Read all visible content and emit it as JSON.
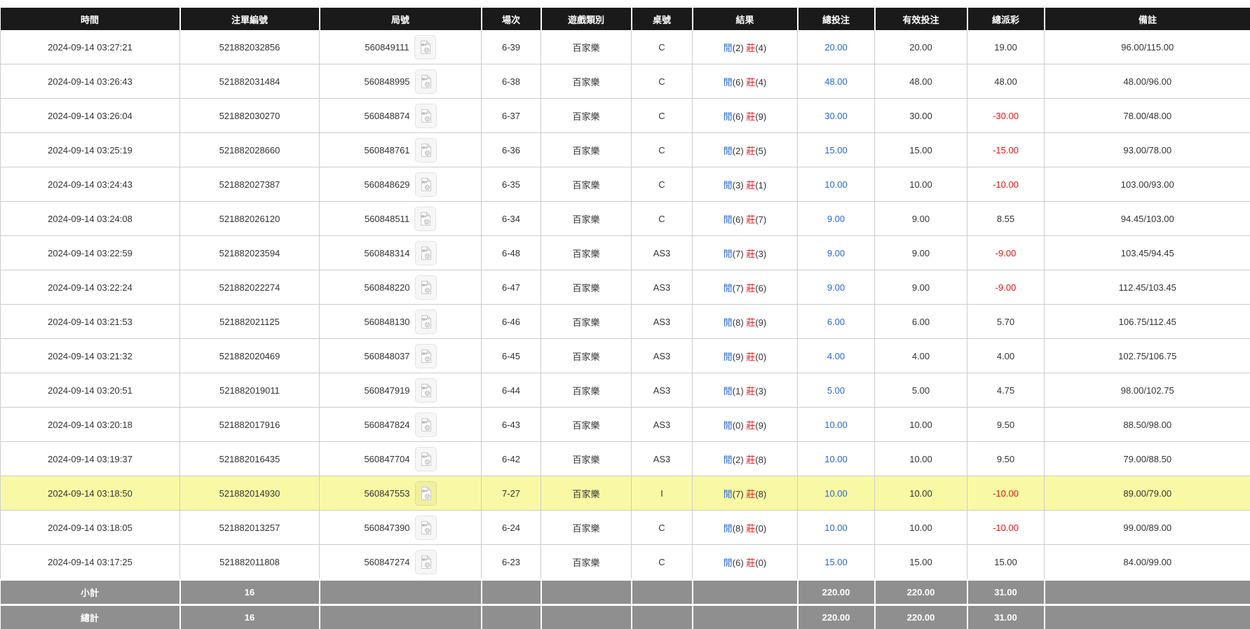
{
  "table": {
    "columns": [
      {
        "key": "time",
        "label": "時間"
      },
      {
        "key": "bet_id",
        "label": "注單編號"
      },
      {
        "key": "round_id",
        "label": "局號"
      },
      {
        "key": "session",
        "label": "場次"
      },
      {
        "key": "game",
        "label": "遊戲類別"
      },
      {
        "key": "table_no",
        "label": "桌號"
      },
      {
        "key": "result",
        "label": "結果"
      },
      {
        "key": "total_bet",
        "label": "總投注"
      },
      {
        "key": "valid_bet",
        "label": "有效投注"
      },
      {
        "key": "payout",
        "label": "總派彩"
      },
      {
        "key": "remark",
        "label": "備註"
      }
    ],
    "result_labels": {
      "player_char": "閒",
      "banker_char": "莊"
    },
    "icons": {
      "round_video": "video-replay-icon"
    },
    "rows": [
      {
        "time": "2024-09-14 03:27:21",
        "bet_id": "521882032856",
        "round_id": "560849111",
        "session": "6-39",
        "game": "百家樂",
        "table_no": "C",
        "player": "(2)",
        "banker": "(4)",
        "total_bet": "20.00",
        "valid_bet": "20.00",
        "payout": "19.00",
        "remark": "96.00/115.00",
        "highlight": false
      },
      {
        "time": "2024-09-14 03:26:43",
        "bet_id": "521882031484",
        "round_id": "560848995",
        "session": "6-38",
        "game": "百家樂",
        "table_no": "C",
        "player": "(6)",
        "banker": "(4)",
        "total_bet": "48.00",
        "valid_bet": "48.00",
        "payout": "48.00",
        "remark": "48.00/96.00",
        "highlight": false
      },
      {
        "time": "2024-09-14 03:26:04",
        "bet_id": "521882030270",
        "round_id": "560848874",
        "session": "6-37",
        "game": "百家樂",
        "table_no": "C",
        "player": "(6)",
        "banker": "(9)",
        "total_bet": "30.00",
        "valid_bet": "30.00",
        "payout": "-30.00",
        "remark": "78.00/48.00",
        "highlight": false
      },
      {
        "time": "2024-09-14 03:25:19",
        "bet_id": "521882028660",
        "round_id": "560848761",
        "session": "6-36",
        "game": "百家樂",
        "table_no": "C",
        "player": "(2)",
        "banker": "(5)",
        "total_bet": "15.00",
        "valid_bet": "15.00",
        "payout": "-15.00",
        "remark": "93.00/78.00",
        "highlight": false
      },
      {
        "time": "2024-09-14 03:24:43",
        "bet_id": "521882027387",
        "round_id": "560848629",
        "session": "6-35",
        "game": "百家樂",
        "table_no": "C",
        "player": "(3)",
        "banker": "(1)",
        "total_bet": "10.00",
        "valid_bet": "10.00",
        "payout": "-10.00",
        "remark": "103.00/93.00",
        "highlight": false
      },
      {
        "time": "2024-09-14 03:24:08",
        "bet_id": "521882026120",
        "round_id": "560848511",
        "session": "6-34",
        "game": "百家樂",
        "table_no": "C",
        "player": "(6)",
        "banker": "(7)",
        "total_bet": "9.00",
        "valid_bet": "9.00",
        "payout": "8.55",
        "remark": "94.45/103.00",
        "highlight": false
      },
      {
        "time": "2024-09-14 03:22:59",
        "bet_id": "521882023594",
        "round_id": "560848314",
        "session": "6-48",
        "game": "百家樂",
        "table_no": "AS3",
        "player": "(7)",
        "banker": "(3)",
        "total_bet": "9.00",
        "valid_bet": "9.00",
        "payout": "-9.00",
        "remark": "103.45/94.45",
        "highlight": false
      },
      {
        "time": "2024-09-14 03:22:24",
        "bet_id": "521882022274",
        "round_id": "560848220",
        "session": "6-47",
        "game": "百家樂",
        "table_no": "AS3",
        "player": "(7)",
        "banker": "(6)",
        "total_bet": "9.00",
        "valid_bet": "9.00",
        "payout": "-9.00",
        "remark": "112.45/103.45",
        "highlight": false
      },
      {
        "time": "2024-09-14 03:21:53",
        "bet_id": "521882021125",
        "round_id": "560848130",
        "session": "6-46",
        "game": "百家樂",
        "table_no": "AS3",
        "player": "(8)",
        "banker": "(9)",
        "total_bet": "6.00",
        "valid_bet": "6.00",
        "payout": "5.70",
        "remark": "106.75/112.45",
        "highlight": false
      },
      {
        "time": "2024-09-14 03:21:32",
        "bet_id": "521882020469",
        "round_id": "560848037",
        "session": "6-45",
        "game": "百家樂",
        "table_no": "AS3",
        "player": "(9)",
        "banker": "(0)",
        "total_bet": "4.00",
        "valid_bet": "4.00",
        "payout": "4.00",
        "remark": "102.75/106.75",
        "highlight": false
      },
      {
        "time": "2024-09-14 03:20:51",
        "bet_id": "521882019011",
        "round_id": "560847919",
        "session": "6-44",
        "game": "百家樂",
        "table_no": "AS3",
        "player": "(1)",
        "banker": "(3)",
        "total_bet": "5.00",
        "valid_bet": "5.00",
        "payout": "4.75",
        "remark": "98.00/102.75",
        "highlight": false
      },
      {
        "time": "2024-09-14 03:20:18",
        "bet_id": "521882017916",
        "round_id": "560847824",
        "session": "6-43",
        "game": "百家樂",
        "table_no": "AS3",
        "player": "(0)",
        "banker": "(9)",
        "total_bet": "10.00",
        "valid_bet": "10.00",
        "payout": "9.50",
        "remark": "88.50/98.00",
        "highlight": false
      },
      {
        "time": "2024-09-14 03:19:37",
        "bet_id": "521882016435",
        "round_id": "560847704",
        "session": "6-42",
        "game": "百家樂",
        "table_no": "AS3",
        "player": "(2)",
        "banker": "(8)",
        "total_bet": "10.00",
        "valid_bet": "10.00",
        "payout": "9.50",
        "remark": "79.00/88.50",
        "highlight": false
      },
      {
        "time": "2024-09-14 03:18:50",
        "bet_id": "521882014930",
        "round_id": "560847553",
        "session": "7-27",
        "game": "百家樂",
        "table_no": "I",
        "player": "(7)",
        "banker": "(8)",
        "total_bet": "10.00",
        "valid_bet": "10.00",
        "payout": "-10.00",
        "remark": "89.00/79.00",
        "highlight": true
      },
      {
        "time": "2024-09-14 03:18:05",
        "bet_id": "521882013257",
        "round_id": "560847390",
        "session": "6-24",
        "game": "百家樂",
        "table_no": "C",
        "player": "(8)",
        "banker": "(0)",
        "total_bet": "10.00",
        "valid_bet": "10.00",
        "payout": "-10.00",
        "remark": "99.00/89.00",
        "highlight": false
      },
      {
        "time": "2024-09-14 03:17:25",
        "bet_id": "521882011808",
        "round_id": "560847274",
        "session": "6-23",
        "game": "百家樂",
        "table_no": "C",
        "player": "(6)",
        "banker": "(0)",
        "total_bet": "15.00",
        "valid_bet": "15.00",
        "payout": "15.00",
        "remark": "84.00/99.00",
        "highlight": false
      }
    ],
    "footer": [
      {
        "label": "小計",
        "count": "16",
        "total_bet": "220.00",
        "valid_bet": "220.00",
        "payout": "31.00"
      },
      {
        "label": "總計",
        "count": "16",
        "total_bet": "220.00",
        "valid_bet": "220.00",
        "payout": "31.00"
      }
    ]
  },
  "colors": {
    "header_bg": "#1a1a1a",
    "footer_bg": "#8f8f8f",
    "highlight_row": "#f9f9a5",
    "link_blue": "#2666d8",
    "negative_red": "#ee1111"
  }
}
